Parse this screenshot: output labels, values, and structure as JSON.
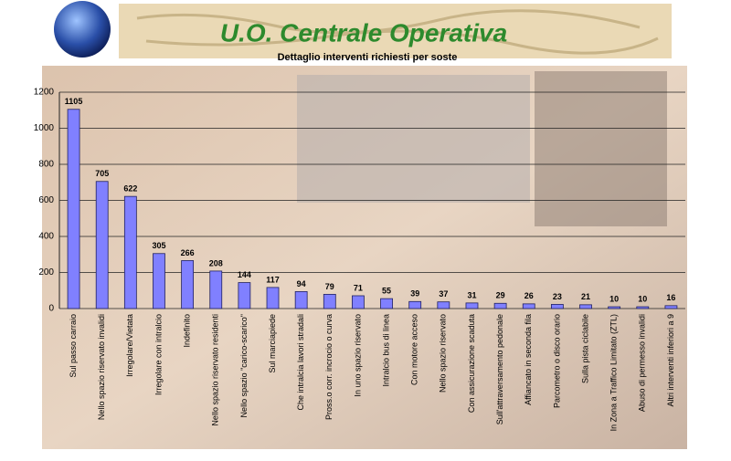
{
  "header": {
    "title": "U.O. Centrale Operativa"
  },
  "chart_data": {
    "type": "bar",
    "title": "Dettaglio interventi richiesti per soste",
    "categories": [
      "Sul passo carraio",
      "Nello spazio riservato invalidi",
      "Irregolare/Vietata",
      "Irregolare con intralcio",
      "Indefinito",
      "Nello spazio riservato residenti",
      "Nello spazio \"carico-scarico\"",
      "Sul marciapiede",
      "Che intralcia lavori stradali",
      "Pross.o corr. incrocio o curva",
      "In uno spazio riservato",
      "Intralcio bus di linea",
      "Con motore acceso",
      "Nello spazio riservato",
      "Con assicurazione scaduta",
      "Sull'attraversamento pedonale",
      "Affiancato in seconda fila",
      "Parcometro o disco orario",
      "Sulla pista ciclabile",
      "In Zona a Traffico Limitato (ZTL)",
      "Abuso di permesso invalidi",
      "Altri interventi inferiori a 9"
    ],
    "values": [
      1105,
      705,
      622,
      305,
      266,
      208,
      144,
      117,
      94,
      79,
      71,
      55,
      39,
      37,
      31,
      29,
      26,
      23,
      21,
      10,
      10,
      16
    ],
    "color": "#8080ff",
    "ylim": [
      0,
      1200
    ],
    "yticks": [
      0,
      200,
      400,
      600,
      800,
      1000,
      1200
    ],
    "grid": true
  }
}
